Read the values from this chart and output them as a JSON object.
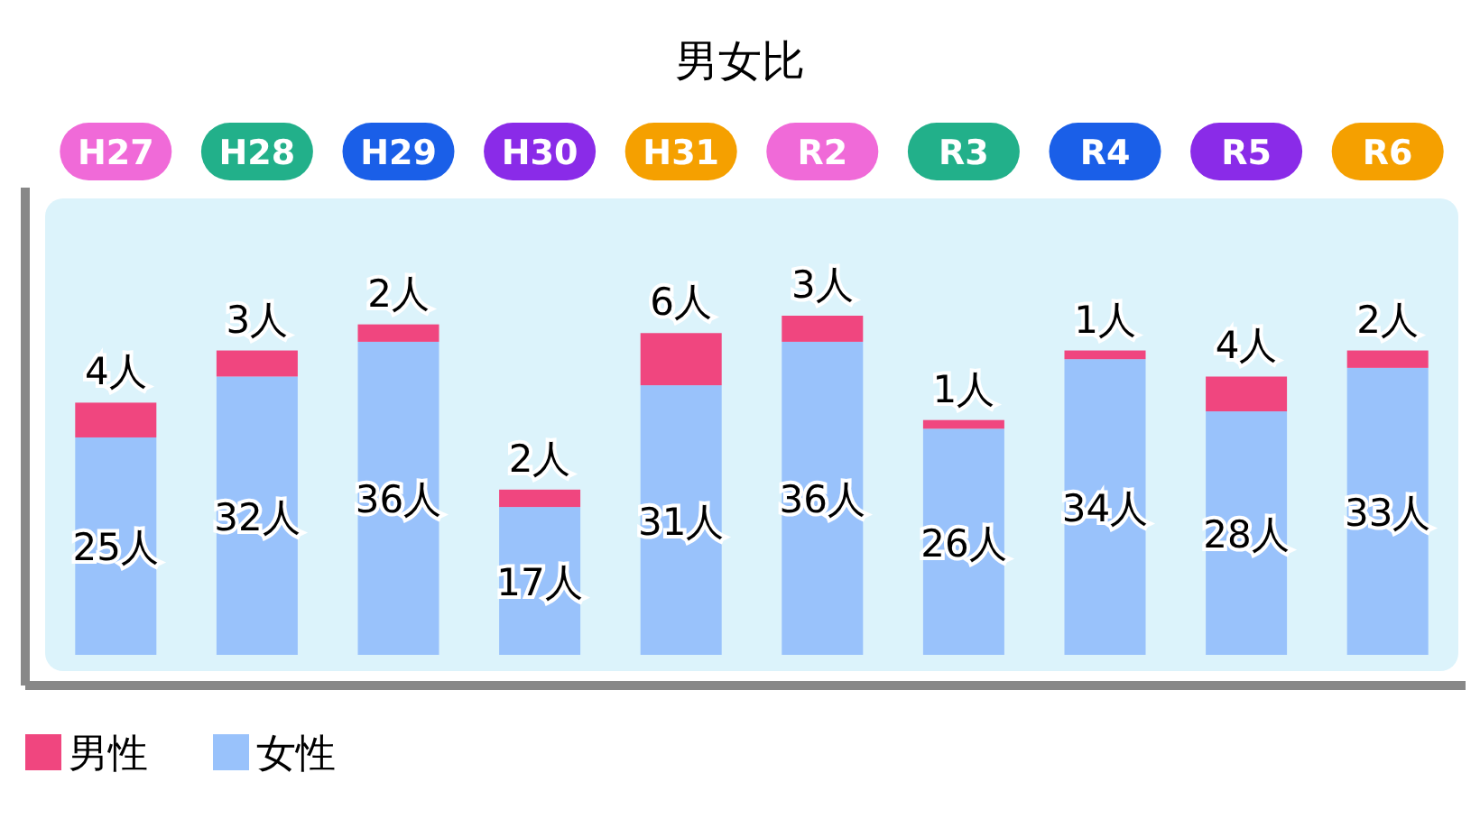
{
  "chart_data": {
    "type": "bar",
    "stacked": true,
    "title": "男女比",
    "categories": [
      "H27",
      "H28",
      "H29",
      "H30",
      "H31",
      "R2",
      "R3",
      "R4",
      "R5",
      "R6"
    ],
    "series": [
      {
        "name": "女性",
        "color": "#99c2fb",
        "values": [
          25,
          32,
          36,
          17,
          31,
          36,
          26,
          34,
          28,
          33
        ],
        "value_labels": [
          "25人",
          "32人",
          "36人",
          "17人",
          "31人",
          "36人",
          "26人",
          "34人",
          "28人",
          "33人"
        ]
      },
      {
        "name": "男性",
        "color": "#f0467f",
        "values": [
          4,
          3,
          2,
          2,
          6,
          3,
          1,
          1,
          4,
          2
        ],
        "value_labels": [
          "4人",
          "3人",
          "2人",
          "2人",
          "6人",
          "3人",
          "1人",
          "1人",
          "4人",
          "2人"
        ]
      }
    ],
    "legend": "bottom left"
  }
}
